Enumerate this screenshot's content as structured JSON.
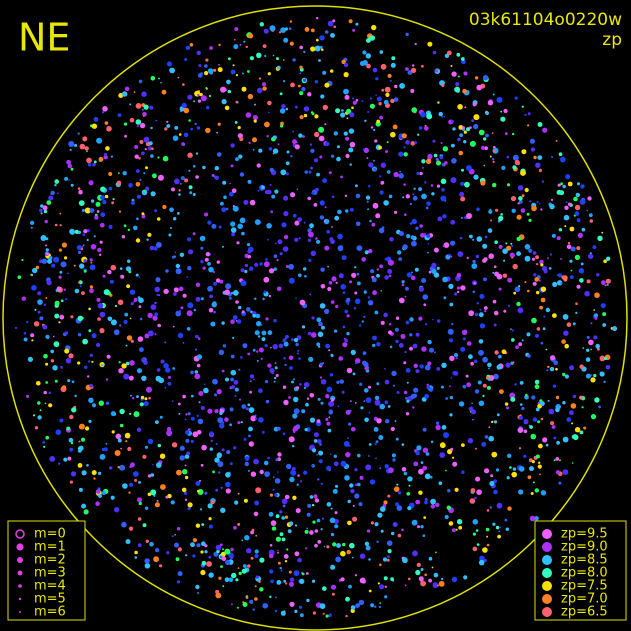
{
  "header": {
    "corner_label": "NE",
    "frame_id": "03k61104o0220w",
    "color_key": "zp"
  },
  "magnitude_legend": {
    "items": [
      "m=0",
      "m=1",
      "m=2",
      "m=3",
      "m=4",
      "m=5",
      "m=6"
    ]
  },
  "zp_legend": {
    "items": [
      {
        "label": "zp=9.5",
        "color": "#f060ff"
      },
      {
        "label": "zp=9.0",
        "color": "#b030ff"
      },
      {
        "label": "zp=8.5",
        "color": "#30c0ff"
      },
      {
        "label": "zp=8.0",
        "color": "#30ffc0"
      },
      {
        "label": "zp=7.5",
        "color": "#ffe000"
      },
      {
        "label": "zp=7.0",
        "color": "#ff8020"
      },
      {
        "label": "zp=6.5",
        "color": "#ff6070"
      }
    ]
  }
}
